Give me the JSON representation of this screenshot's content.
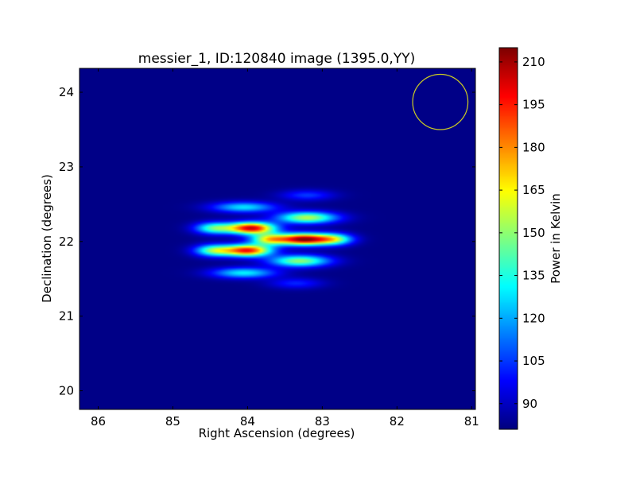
{
  "chart_data": {
    "type": "heatmap",
    "title": "messier_1, ID:120840 image (1395.0,YY)",
    "xlabel": "Right Ascension (degrees)",
    "ylabel": "Declination (degrees)",
    "xlim": [
      86.25,
      80.95
    ],
    "ylim": [
      19.75,
      24.32
    ],
    "x_ticks": [
      86,
      85,
      84,
      83,
      82,
      81
    ],
    "x_tick_labels": [
      "86",
      "85",
      "84",
      "83",
      "82",
      "81"
    ],
    "y_ticks": [
      20,
      21,
      22,
      23,
      24
    ],
    "y_tick_labels": [
      "20",
      "21",
      "22",
      "23",
      "24"
    ],
    "grid": false,
    "colorbar": {
      "label": "Power in Kelvin",
      "colormap": "jet",
      "range": [
        81,
        215
      ],
      "ticks": [
        90,
        105,
        120,
        135,
        150,
        165,
        180,
        195,
        210
      ],
      "tick_labels": [
        "90",
        "105",
        "120",
        "135",
        "150",
        "165",
        "180",
        "195",
        "210"
      ]
    },
    "background_level": 82,
    "image_extent": {
      "ra_min": 80.95,
      "ra_max": 86.25,
      "dec_min": 19.75,
      "dec_max": 24.32
    },
    "source_blobs": [
      {
        "ra": 83.95,
        "dec": 22.18,
        "peak": 205,
        "sigma_ra": 0.22,
        "sigma_dec": 0.055
      },
      {
        "ra": 83.25,
        "dec": 22.03,
        "peak": 210,
        "sigma_ra": 0.22,
        "sigma_dec": 0.055
      },
      {
        "ra": 84.0,
        "dec": 21.88,
        "peak": 196,
        "sigma_ra": 0.22,
        "sigma_dec": 0.055
      },
      {
        "ra": 84.45,
        "dec": 22.18,
        "peak": 140,
        "sigma_ra": 0.18,
        "sigma_dec": 0.055
      },
      {
        "ra": 84.45,
        "dec": 21.88,
        "peak": 145,
        "sigma_ra": 0.18,
        "sigma_dec": 0.055
      },
      {
        "ra": 83.7,
        "dec": 22.03,
        "peak": 160,
        "sigma_ra": 0.18,
        "sigma_dec": 0.055
      },
      {
        "ra": 82.85,
        "dec": 22.03,
        "peak": 150,
        "sigma_ra": 0.18,
        "sigma_dec": 0.055
      },
      {
        "ra": 83.2,
        "dec": 22.32,
        "peak": 155,
        "sigma_ra": 0.28,
        "sigma_dec": 0.055
      },
      {
        "ra": 83.3,
        "dec": 21.74,
        "peak": 150,
        "sigma_ra": 0.28,
        "sigma_dec": 0.055
      },
      {
        "ra": 84.05,
        "dec": 22.46,
        "peak": 128,
        "sigma_ra": 0.3,
        "sigma_dec": 0.05
      },
      {
        "ra": 84.05,
        "dec": 21.58,
        "peak": 130,
        "sigma_ra": 0.3,
        "sigma_dec": 0.05
      },
      {
        "ra": 83.2,
        "dec": 22.62,
        "peak": 105,
        "sigma_ra": 0.25,
        "sigma_dec": 0.05
      },
      {
        "ra": 83.35,
        "dec": 21.44,
        "peak": 102,
        "sigma_ra": 0.25,
        "sigma_dec": 0.05
      }
    ],
    "beam_circle": {
      "ra": 81.42,
      "dec": 23.87,
      "radius_deg": 0.37,
      "color": "#cccc22"
    }
  }
}
